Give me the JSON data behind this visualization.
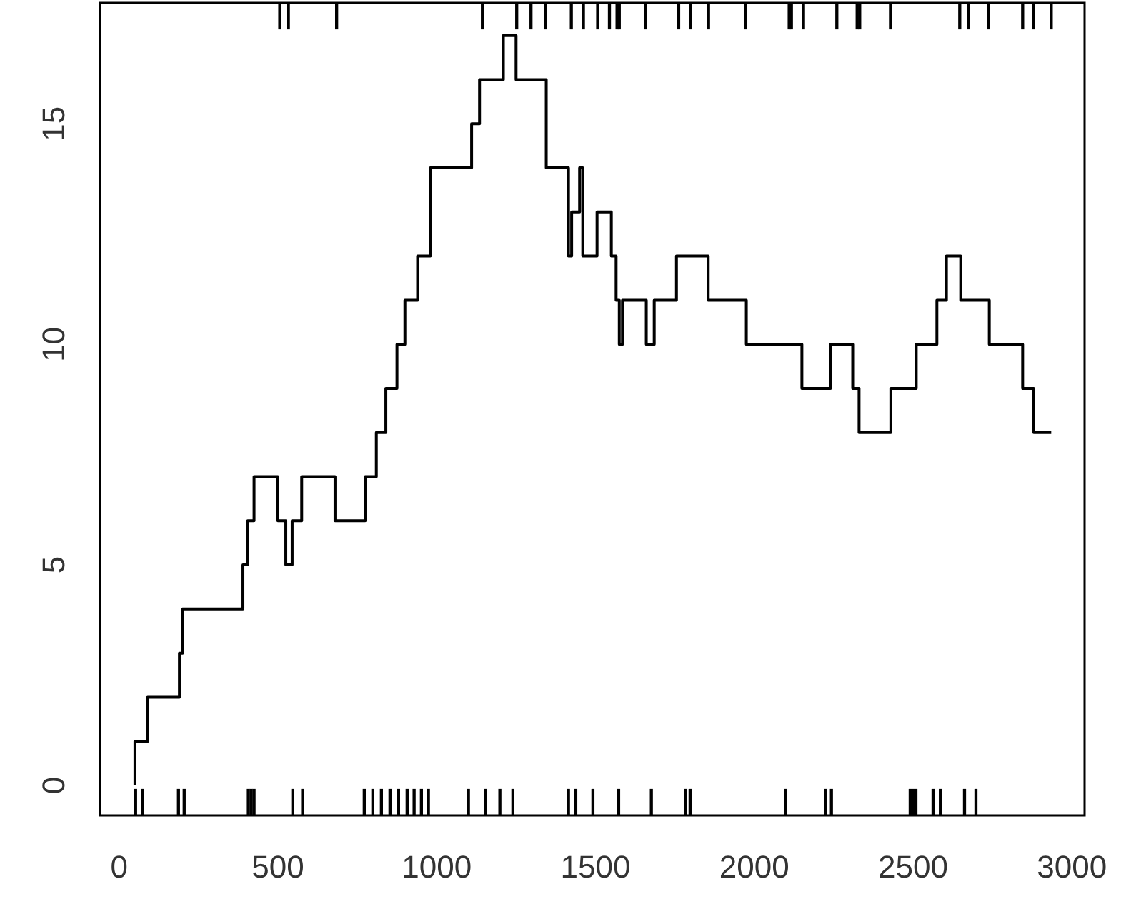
{
  "chart_data": {
    "type": "step",
    "xlim": [
      -60,
      3040
    ],
    "ylim": [
      -0.68,
      17.74
    ],
    "xticks": [
      0,
      500,
      1000,
      1500,
      2000,
      2500,
      3000
    ],
    "yticks": [
      0,
      5,
      10,
      15
    ],
    "grid": false,
    "legend": false,
    "series": [
      {
        "color": "#000000",
        "x": [
          50,
          90,
          190,
          200,
          390,
          405,
          425,
          500,
          525,
          545,
          575,
          680,
          775,
          810,
          840,
          875,
          900,
          940,
          980,
          1110,
          1135,
          1210,
          1250,
          1345,
          1415,
          1425,
          1450,
          1460,
          1505,
          1550,
          1565,
          1575,
          1585,
          1660,
          1685,
          1755,
          1855,
          1975,
          2150,
          2240,
          2310,
          2330,
          2430,
          2510,
          2575,
          2605,
          2650,
          2740,
          2845,
          2880,
          2935
        ],
        "values": [
          0,
          1,
          2,
          3,
          4,
          5,
          6,
          7,
          6,
          5,
          6,
          7,
          6,
          7,
          8,
          9,
          10,
          11,
          12,
          14,
          15,
          16,
          17,
          16,
          14,
          12,
          13,
          14,
          12,
          13,
          12,
          11,
          10,
          11,
          10,
          11,
          12,
          11,
          10,
          9,
          10,
          9,
          8,
          9,
          10,
          11,
          12,
          11,
          10,
          9,
          8
        ]
      },
      {
        "type": "bar",
        "color": "#000000",
        "base": [
          -0.68,
          -0.68,
          -0.68,
          -0.68,
          -0.68,
          -0.68,
          -0.68,
          -0.68,
          -0.68,
          -0.68,
          -0.68,
          -0.68,
          -0.68,
          -0.68,
          -0.68,
          -0.68,
          -0.68,
          -0.68,
          -0.68,
          -0.68,
          -0.68,
          -0.68,
          -0.68,
          -0.68,
          -0.68,
          -0.68,
          -0.68,
          -0.68,
          -0.68,
          -0.68,
          -0.68,
          -0.68,
          -0.68,
          -0.68,
          -0.68,
          -0.68,
          -0.68,
          -0.68,
          -0.68
        ],
        "x": [
          52,
          74,
          187,
          205,
          407,
          416,
          425,
          547,
          578,
          772,
          799,
          826,
          853,
          880,
          907,
          929,
          952,
          974,
          1100,
          1154,
          1199,
          1240,
          1415,
          1438,
          1492,
          1573,
          1676,
          1784,
          1798,
          2099,
          2225,
          2243,
          2491,
          2500,
          2509,
          2563,
          2586,
          2662,
          2698
        ],
        "values": [
          0.59,
          0.59,
          0.59,
          0.59,
          0.59,
          0.59,
          0.59,
          0.59,
          0.59,
          0.59,
          0.59,
          0.59,
          0.59,
          0.59,
          0.59,
          0.59,
          0.59,
          0.59,
          0.59,
          0.59,
          0.59,
          0.59,
          0.59,
          0.59,
          0.59,
          0.59,
          0.59,
          0.59,
          0.59,
          0.59,
          0.59,
          0.59,
          0.59,
          0.59,
          0.59,
          0.59,
          0.59,
          0.59,
          0.59
        ]
      },
      {
        "type": "bar",
        "color": "#000000",
        "base": [
          17.15,
          17.15,
          17.15,
          17.15,
          17.15,
          17.15,
          17.15,
          17.15,
          17.15,
          17.15,
          17.15,
          17.15,
          17.15,
          17.15,
          17.15,
          17.15,
          17.15,
          17.15,
          17.15,
          17.15,
          17.15,
          17.15,
          17.15,
          17.15,
          17.15,
          17.15,
          17.15,
          17.15,
          17.15,
          17.15,
          17.15
        ],
        "x": [
          506,
          533,
          685,
          1144,
          1252,
          1297,
          1342,
          1424,
          1462,
          1507,
          1544,
          1568,
          1575,
          1657,
          1762,
          1799,
          1856,
          1972,
          2110,
          2117,
          2155,
          2260,
          2324,
          2332,
          2429,
          2647,
          2674,
          2738,
          2845,
          2879,
          2935
        ],
        "values": [
          0.59,
          0.59,
          0.59,
          0.59,
          0.59,
          0.59,
          0.59,
          0.59,
          0.59,
          0.59,
          0.59,
          0.59,
          0.59,
          0.59,
          0.59,
          0.59,
          0.59,
          0.59,
          0.59,
          0.59,
          0.59,
          0.59,
          0.59,
          0.59,
          0.59,
          0.59,
          0.59,
          0.59,
          0.59,
          0.59,
          0.59
        ]
      }
    ]
  }
}
